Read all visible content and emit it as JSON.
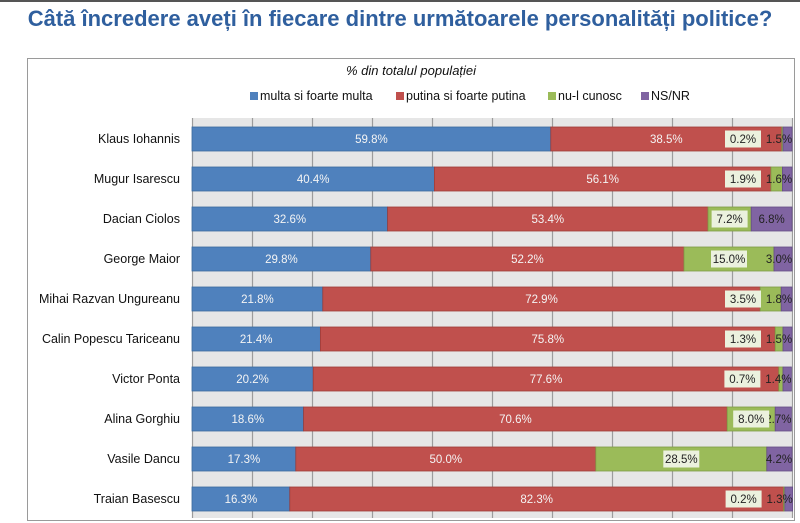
{
  "title": "Câtă încredere aveți în fiecare dintre următoarele personalități politice?",
  "chart_data": {
    "type": "bar",
    "orientation": "horizontal",
    "stacked": true,
    "normalized": "percent",
    "title": "% din totalul populației",
    "xlabel": "",
    "ylabel": "",
    "xlim": [
      0,
      100
    ],
    "grid": true,
    "legend_position": "top",
    "categories": [
      "Klaus Iohannis",
      "Mugur Isarescu",
      "Dacian Ciolos",
      "George Maior",
      "Mihai Razvan Ungureanu",
      "Calin Popescu Tariceanu",
      "Victor Ponta",
      "Alina Gorghiu",
      "Vasile Dancu",
      "Traian Basescu"
    ],
    "series": [
      {
        "name": "multa si foarte multa",
        "color": "#4F81BD",
        "values": [
          59.8,
          40.4,
          32.6,
          29.8,
          21.8,
          21.4,
          20.2,
          18.6,
          17.3,
          16.3
        ]
      },
      {
        "name": "putina si foarte putina",
        "color": "#C0504D",
        "values": [
          38.5,
          56.1,
          53.4,
          52.2,
          72.9,
          75.8,
          77.6,
          70.6,
          50.0,
          82.3
        ]
      },
      {
        "name": "nu-l cunosc",
        "color": "#9BBB59",
        "values": [
          0.2,
          1.9,
          7.2,
          15.0,
          3.5,
          1.3,
          0.7,
          8.0,
          28.5,
          0.2
        ]
      },
      {
        "name": "NS/NR",
        "color": "#8064A2",
        "values": [
          1.5,
          1.6,
          6.8,
          3.0,
          1.8,
          1.5,
          1.4,
          2.7,
          4.2,
          1.3
        ]
      }
    ],
    "value_suffix": "%"
  }
}
